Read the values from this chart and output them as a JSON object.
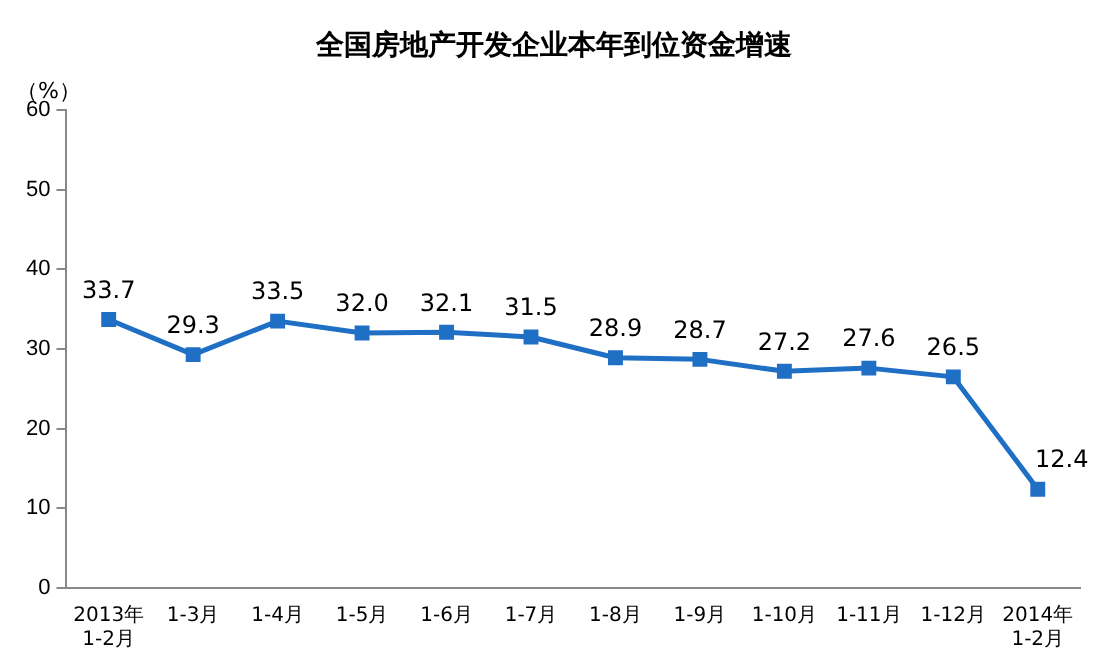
{
  "chart_data": {
    "type": "line",
    "title": "全国房地产开发企业本年到位资金增速",
    "ylabel": "（%）",
    "categories": [
      "2013年\n1-2月",
      "1-3月",
      "1-4月",
      "1-5月",
      "1-6月",
      "1-7月",
      "1-8月",
      "1-9月",
      "1-10月",
      "1-11月",
      "1-12月",
      "2014年\n1-2月"
    ],
    "series": [
      {
        "color": "#1f6fc5",
        "values": [
          33.7,
          29.3,
          33.5,
          32.0,
          32.1,
          31.5,
          28.9,
          28.7,
          27.2,
          27.6,
          26.5,
          12.4
        ],
        "value_labels": [
          "33.7",
          "29.3",
          "33.5",
          "32.0",
          "32.1",
          "31.5",
          "28.9",
          "28.7",
          "27.2",
          "27.6",
          "26.5",
          "12.4"
        ]
      }
    ],
    "ylim": [
      0,
      60
    ],
    "yticks": [
      0,
      10,
      20,
      30,
      40,
      50,
      60
    ],
    "grid": false,
    "legend": false,
    "marker": "square"
  }
}
